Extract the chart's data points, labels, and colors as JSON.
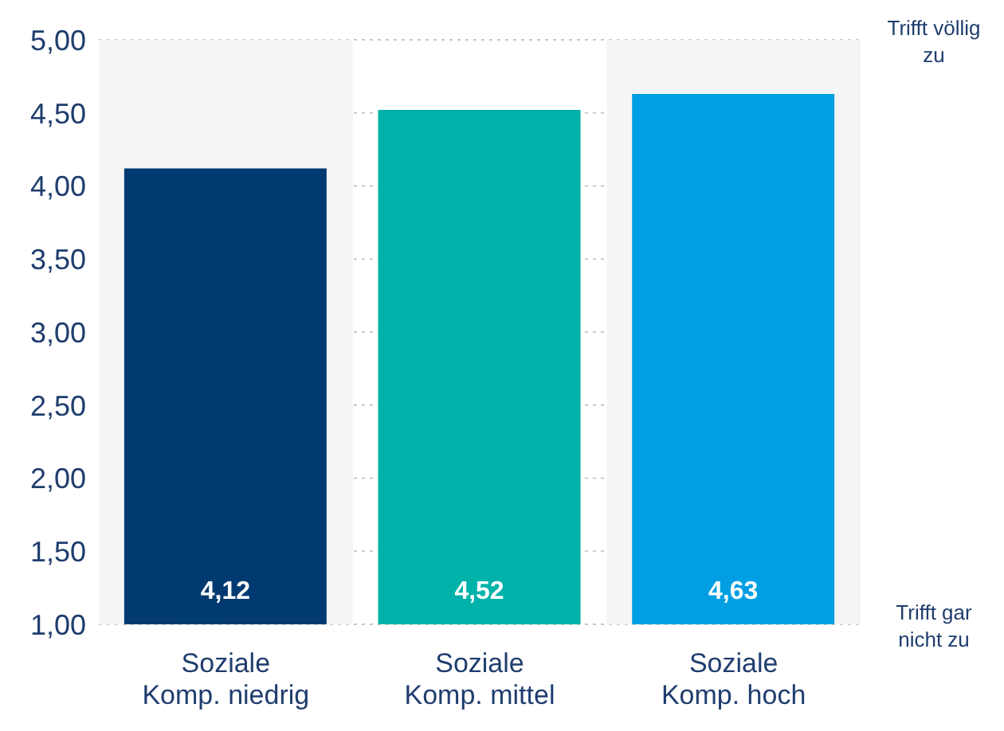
{
  "chart_data": {
    "type": "bar",
    "categories": [
      "Soziale Komp. niedrig",
      "Soziale Komp. mittel",
      "Soziale Komp. hoch"
    ],
    "values": [
      4.12,
      4.52,
      4.63
    ],
    "colors": [
      "#003a70",
      "#00b2a9",
      "#009fe3"
    ],
    "value_labels": [
      "4,12",
      "4,52",
      "4,63"
    ],
    "ylim": [
      1,
      5
    ],
    "yticks": [
      {
        "value": 1,
        "label": "1,00"
      },
      {
        "value": 1.5,
        "label": "1,50"
      },
      {
        "value": 2,
        "label": "2,00"
      },
      {
        "value": 2.5,
        "label": "2,50"
      },
      {
        "value": 3,
        "label": "3,00"
      },
      {
        "value": 3.5,
        "label": "3,50"
      },
      {
        "value": 4,
        "label": "4,00"
      },
      {
        "value": 4.5,
        "label": "4,50"
      },
      {
        "value": 5,
        "label": "5,00"
      }
    ],
    "grid": "y",
    "bands": [
      {
        "axis": "x",
        "from": "Soziale Komp. niedrig",
        "to": "Soziale Komp. niedrig",
        "color": "#f5f5f5"
      },
      {
        "axis": "x",
        "from": "Soziale Komp. hoch",
        "to": "Soziale Komp. hoch",
        "color": "#f5f5f5"
      }
    ],
    "annotations": [
      "Trifft völlig zu",
      "Trifft gar nicht zu"
    ]
  }
}
